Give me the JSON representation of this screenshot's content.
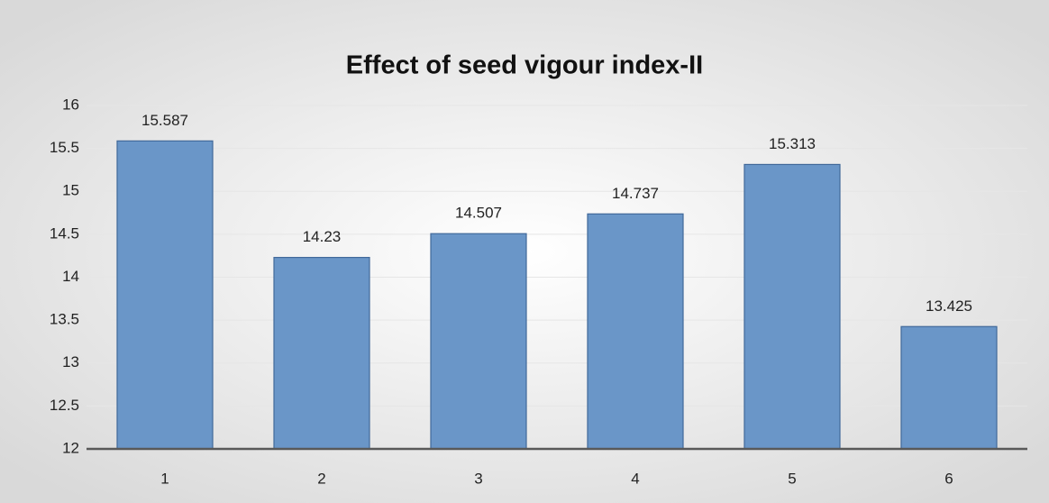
{
  "chart_data": {
    "type": "bar",
    "title": "Effect of seed vigour index-II",
    "categories": [
      "1",
      "2",
      "3",
      "4",
      "5",
      "6"
    ],
    "values": [
      15.587,
      14.23,
      14.507,
      14.737,
      15.313,
      13.425
    ],
    "color": "#6a96c8",
    "ylim": [
      12,
      16
    ],
    "yticks": [
      12,
      12.5,
      13,
      13.5,
      14,
      14.5,
      15,
      15.5,
      16
    ],
    "grid": true
  }
}
